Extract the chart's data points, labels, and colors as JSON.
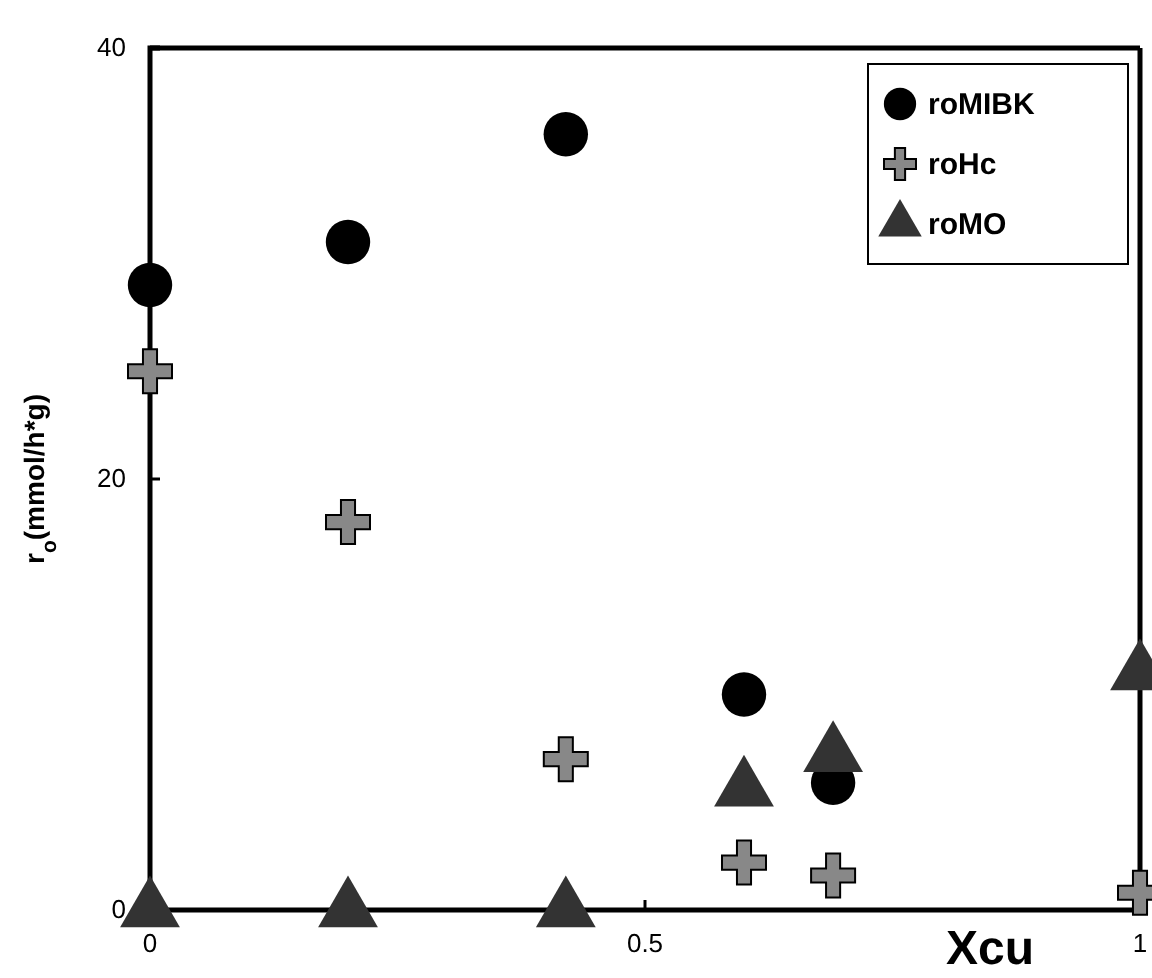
{
  "chart_data": {
    "type": "scatter",
    "xlabel": "Xcu",
    "ylabel": "r$_{o}$(mmol/h*g)",
    "xlim": [
      0,
      1
    ],
    "xticks": [
      0,
      0.5,
      1
    ],
    "ylim": [
      0,
      40
    ],
    "yticks": [
      0,
      20,
      40
    ],
    "grid": false,
    "legend": "top right",
    "series": [
      {
        "name": "roMIBK",
        "color": "#000000",
        "marker": "circle",
        "x": [
          0,
          0.2,
          0.42,
          0.6,
          0.69
        ],
        "values": [
          29,
          31,
          36,
          10,
          5.9
        ]
      },
      {
        "name": "roHc",
        "color": "#888888",
        "marker": "cross",
        "x": [
          0,
          0.2,
          0.42,
          0.6,
          0.69,
          1
        ],
        "values": [
          25,
          18,
          7,
          2.2,
          1.6,
          0.8
        ]
      },
      {
        "name": "roMO",
        "color": "#333333",
        "marker": "triangle",
        "x": [
          0,
          0.2,
          0.42,
          0.6,
          0.69,
          1
        ],
        "values": [
          0,
          0,
          0,
          5.6,
          7.2,
          11
        ]
      }
    ]
  }
}
